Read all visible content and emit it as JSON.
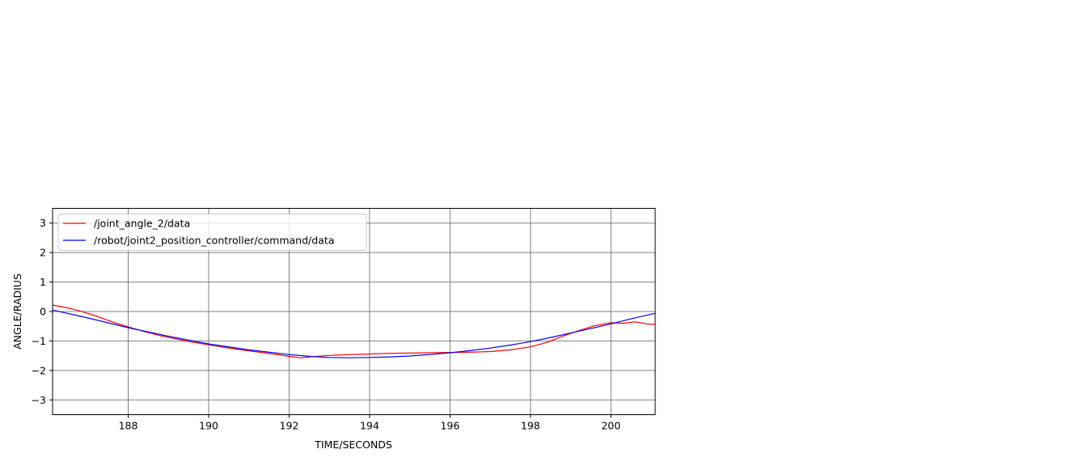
{
  "chart_data": {
    "type": "line",
    "title": "",
    "xlabel": "TIME/SECONDS",
    "ylabel": "ANGLE/RADIUS",
    "xlim": [
      186.12,
      201.1
    ],
    "ylim": [
      -3.5,
      3.5
    ],
    "xticks": [
      188,
      190,
      192,
      194,
      196,
      198,
      200
    ],
    "yticks": [
      3,
      2,
      1,
      0,
      -1,
      -2,
      -3
    ],
    "ytick_labels": [
      "3",
      "2",
      "1",
      "0",
      "−1",
      "−2",
      "−3"
    ],
    "grid": true,
    "grid_color": "#808080",
    "legend_position": "upper-left",
    "series": [
      {
        "name": "/joint_angle_2/data",
        "color": "#ff0000",
        "x": [
          186.12,
          186.5,
          186.8,
          187.2,
          187.6,
          188.0,
          188.4,
          188.8,
          189.2,
          189.6,
          190.0,
          190.4,
          190.8,
          191.2,
          191.6,
          192.0,
          192.3,
          192.6,
          193.0,
          193.5,
          194.0,
          194.5,
          195.0,
          195.5,
          196.0,
          196.5,
          197.0,
          197.5,
          198.0,
          198.4,
          198.8,
          199.2,
          199.6,
          200.0,
          200.3,
          200.6,
          200.9,
          201.1
        ],
        "y": [
          0.22,
          0.12,
          0.02,
          -0.15,
          -0.35,
          -0.52,
          -0.68,
          -0.82,
          -0.93,
          -1.04,
          -1.13,
          -1.22,
          -1.3,
          -1.37,
          -1.44,
          -1.52,
          -1.57,
          -1.53,
          -1.49,
          -1.46,
          -1.44,
          -1.42,
          -1.41,
          -1.4,
          -1.39,
          -1.38,
          -1.36,
          -1.3,
          -1.2,
          -1.05,
          -0.84,
          -0.65,
          -0.48,
          -0.38,
          -0.4,
          -0.35,
          -0.42,
          -0.44
        ]
      },
      {
        "name": "/robot/joint2_position_controller/command/data",
        "color": "#0000ff",
        "x": [
          186.12,
          187.0,
          188.0,
          189.0,
          190.0,
          191.0,
          192.0,
          192.5,
          193.0,
          193.5,
          194.0,
          194.5,
          195.0,
          195.5,
          196.0,
          196.5,
          197.0,
          197.5,
          198.0,
          198.5,
          199.0,
          199.5,
          200.0,
          200.5,
          201.1
        ],
        "y": [
          0.05,
          -0.22,
          -0.55,
          -0.84,
          -1.1,
          -1.3,
          -1.46,
          -1.52,
          -1.56,
          -1.57,
          -1.56,
          -1.54,
          -1.51,
          -1.46,
          -1.4,
          -1.33,
          -1.24,
          -1.14,
          -1.02,
          -0.88,
          -0.73,
          -0.58,
          -0.42,
          -0.25,
          -0.06
        ]
      }
    ]
  }
}
